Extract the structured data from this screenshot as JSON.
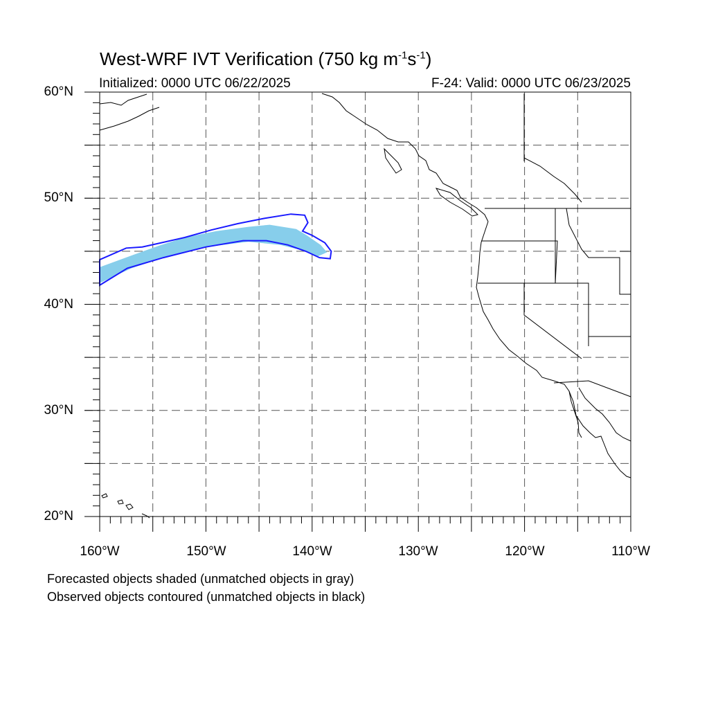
{
  "title": {
    "main": "West-WRF IVT Verification (750 kg m",
    "sup1": "-1",
    "mid": "s",
    "sup2": "-1",
    "end": ")"
  },
  "subtitle_left": "Initialized: 0000 UTC 06/22/2025",
  "subtitle_right": "F-24: Valid: 0000 UTC 06/23/2025",
  "lat_labels": [
    "60°N",
    "50°N",
    "40°N",
    "30°N",
    "20°N"
  ],
  "lon_labels": [
    "160°W",
    "150°W",
    "140°W",
    "130°W",
    "120°W",
    "110°W"
  ],
  "notes": [
    "Forecasted objects shaded (unmatched objects in gray)",
    "Observed objects contoured (unmatched objects in black)"
  ],
  "map": {
    "lon_range": [
      -160,
      -110
    ],
    "lat_range": [
      20,
      60
    ],
    "grid_lons": [
      -155,
      -150,
      -145,
      -140,
      -135,
      -130,
      -125,
      -120,
      -115
    ],
    "grid_lats": [
      25,
      30,
      35,
      40,
      45,
      50,
      55
    ],
    "colors": {
      "forecast_fill": "#87ceeb",
      "observed_contour": "#1a1aff",
      "coast": "#000000",
      "grid": "#555555"
    },
    "forecast_object": [
      [
        -160,
        43.5
      ],
      [
        -157,
        44.6
      ],
      [
        -154.5,
        45.5
      ],
      [
        -152,
        46.3
      ],
      [
        -149,
        46.9
      ],
      [
        -146,
        47.3
      ],
      [
        -144,
        47.5
      ],
      [
        -141.5,
        47.1
      ],
      [
        -140.5,
        46.5
      ],
      [
        -139.2,
        45.6
      ],
      [
        -138.6,
        44.9
      ],
      [
        -139.5,
        44.5
      ],
      [
        -141,
        45.1
      ],
      [
        -143,
        45.6
      ],
      [
        -146,
        45.9
      ],
      [
        -150,
        45.4
      ],
      [
        -154,
        44.4
      ],
      [
        -157,
        43.4
      ],
      [
        -160,
        42.0
      ]
    ],
    "observed_object": [
      [
        -160,
        44.2
      ],
      [
        -157.5,
        45.3
      ],
      [
        -156,
        45.4
      ],
      [
        -154.2,
        45.8
      ],
      [
        -152,
        46.3
      ],
      [
        -149.5,
        47.0
      ],
      [
        -147,
        47.6
      ],
      [
        -144.5,
        48.1
      ],
      [
        -142,
        48.5
      ],
      [
        -140.7,
        48.4
      ],
      [
        -140.4,
        47.7
      ],
      [
        -140.9,
        46.9
      ],
      [
        -140.0,
        46.5
      ],
      [
        -138.8,
        45.8
      ],
      [
        -138.2,
        45.0
      ],
      [
        -138.3,
        44.3
      ],
      [
        -139.3,
        44.4
      ],
      [
        -140.6,
        45.0
      ],
      [
        -142.3,
        45.6
      ],
      [
        -144.3,
        46.0
      ],
      [
        -146.5,
        46.0
      ],
      [
        -150,
        45.4
      ],
      [
        -154,
        44.4
      ],
      [
        -157.4,
        43.4
      ],
      [
        -160,
        41.8
      ]
    ]
  }
}
